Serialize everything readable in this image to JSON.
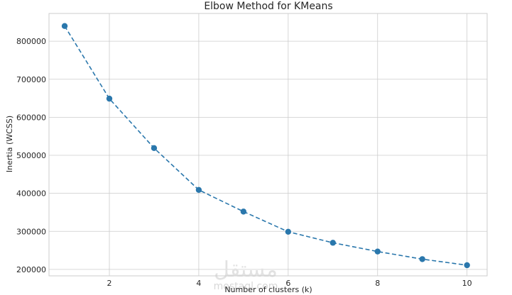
{
  "chart_data": {
    "type": "line",
    "title": "Elbow Method for KMeans",
    "xlabel": "Number of clusters (k)",
    "ylabel": "Inertia (WCSS)",
    "x": [
      1,
      2,
      3,
      4,
      5,
      6,
      7,
      8,
      9,
      10
    ],
    "series": [
      {
        "values": [
          840000,
          649000,
          519000,
          409000,
          352000,
          299000,
          270000,
          247000,
          227000,
          211000
        ]
      }
    ],
    "xlim": [
      0.65,
      10.45
    ],
    "ylim": [
      183000,
      873000
    ],
    "xticks": [
      2,
      4,
      6,
      8,
      10
    ],
    "yticks": [
      200000,
      300000,
      400000,
      500000,
      600000,
      700000,
      800000
    ],
    "grid": true,
    "line_style": "dashed",
    "marker": "circle",
    "colors": {
      "series": "#2a77ac",
      "grid": "#cccccc",
      "axes_edge": "#cccccc"
    }
  },
  "watermark": {
    "latin": "mostaql.com",
    "arabic": "مستقل"
  }
}
